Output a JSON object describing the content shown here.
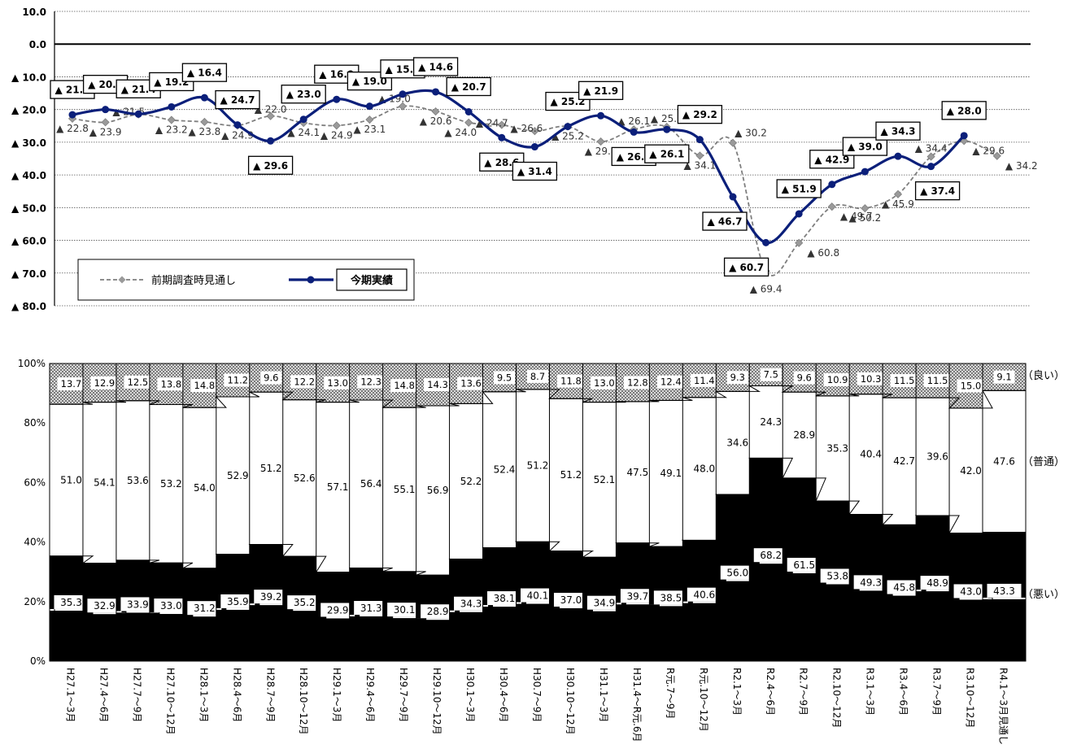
{
  "chart_data": [
    {
      "type": "line",
      "y_axis": {
        "range": [
          10,
          -80
        ],
        "ticks": [
          "10.0",
          "0.0",
          "▲ 10.0",
          "▲ 20.0",
          "▲ 30.0",
          "▲ 40.0",
          "▲ 50.0",
          "▲ 60.0",
          "▲ 70.0",
          "▲ 80.0"
        ],
        "tick_values": [
          10,
          0,
          -10,
          -20,
          -30,
          -40,
          -50,
          -60,
          -70,
          -80
        ]
      },
      "grid": true,
      "legend_position": "bottom-left",
      "series": [
        {
          "name": "前期調査時見通し",
          "style": "dashed-gray-diamond",
          "color": "#7f7f7f",
          "values": [
            -22.8,
            -23.9,
            -21.5,
            -23.2,
            -23.8,
            -24.9,
            -22.0,
            -24.1,
            -24.9,
            -23.1,
            -19.0,
            -20.6,
            -24.0,
            -24.7,
            -26.6,
            -25.2,
            -29.8,
            -26.1,
            -25.3,
            -34.1,
            -30.2,
            -69.4,
            -60.8,
            -49.7,
            -50.2,
            -45.9,
            -34.4,
            -29.6,
            -34.2
          ],
          "labels": [
            "▲ 22.8",
            "▲ 23.9",
            "▲ 21.5",
            "▲ 23.2",
            "▲ 23.8",
            "▲ 24.9",
            "▲ 22.0",
            "▲ 24.1",
            "▲ 24.9",
            "▲ 23.1",
            "▲ 19.0",
            "▲ 20.6",
            "▲ 24.0",
            "▲ 24.7",
            "▲ 26.6",
            "▲ 25.2",
            "▲ 29.8",
            "▲ 26.1",
            "▲ 25.3",
            "▲ 34.1",
            "▲ 30.2",
            "▲ 69.4",
            "▲ 60.8",
            "▲ 49.7",
            "▲ 50.2",
            "▲ 45.9",
            "▲ 34.4",
            "▲ 29.6",
            "▲ 34.2"
          ]
        },
        {
          "name": "今期実績",
          "style": "solid-navy-circle",
          "color": "#0b1f7a",
          "values": [
            -21.6,
            -20.0,
            -21.4,
            -19.2,
            -16.4,
            -24.7,
            -29.6,
            -23.0,
            -16.9,
            -19.0,
            -15.3,
            -14.6,
            -20.7,
            -28.6,
            -31.4,
            -25.2,
            -21.9,
            -26.9,
            -26.1,
            -29.2,
            -46.7,
            -60.7,
            -51.9,
            -42.9,
            -39.0,
            -34.3,
            -37.4,
            -28.0
          ],
          "labels": [
            "▲ 21.6",
            "▲ 20.0",
            "▲ 21.4",
            "▲ 19.2",
            "▲ 16.4",
            "▲ 24.7",
            "▲ 29.6",
            "▲ 23.0",
            "▲ 16.9",
            "▲ 19.0",
            "▲ 15.3",
            "▲ 14.6",
            "▲ 20.7",
            "▲ 28.6",
            "▲ 31.4",
            "▲ 25.2",
            "▲ 21.9",
            "▲ 26.9",
            "▲ 26.1",
            "▲ 29.2",
            "▲ 46.7",
            "▲ 60.7",
            "▲ 51.9",
            "▲ 42.9",
            "▲ 39.0",
            "▲ 34.3",
            "▲ 37.4",
            "▲ 28.0"
          ]
        }
      ]
    },
    {
      "type": "bar",
      "stacked": true,
      "y_axis": {
        "range": [
          0,
          100
        ],
        "ticks": [
          "0%",
          "20%",
          "40%",
          "60%",
          "80%",
          "100%"
        ]
      },
      "categories": [
        "H27.1～3月",
        "H27.4～6月",
        "H27.7～9月",
        "H27.10～12月",
        "H28.1～3月",
        "H28.4～6月",
        "H28.7～9月",
        "H28.10～12月",
        "H29.1～3月",
        "H29.4～6月",
        "H29.7～9月",
        "H29.10～12月",
        "H30.1～3月",
        "H30.4～6月",
        "H30.7～9月",
        "H30.10～12月",
        "H31.1～3月",
        "H31.4～R元.6月",
        "R元.7～9月",
        "R元.10～12月",
        "R2.1～3月",
        "R2.4～6月",
        "R2.7～9月",
        "R2.10～12月",
        "R3.1～3月",
        "R3.4～6月",
        "R3.7～9月",
        "R3.10～12月",
        "R4.1～3月見通し"
      ],
      "series": [
        {
          "name": "（悪い）",
          "color": "#000000",
          "values": [
            35.3,
            32.9,
            33.9,
            33.0,
            31.2,
            35.9,
            39.2,
            35.2,
            29.9,
            31.3,
            30.1,
            28.9,
            34.3,
            38.1,
            40.1,
            37.0,
            34.9,
            39.7,
            38.5,
            40.6,
            56.0,
            68.2,
            61.5,
            53.8,
            49.3,
            45.8,
            48.9,
            43.0,
            43.3
          ],
          "labels": [
            "35.3",
            "32.9",
            "33.9",
            "33.0",
            "31.2",
            "35.9",
            "39.2",
            "35.2",
            "29.9",
            "31.3",
            "30.1",
            "28.9",
            "34.3",
            "38.1",
            "40.1",
            "37.0",
            "34.9",
            "39.7",
            "38.5",
            "40.6",
            "56.0",
            "68.2",
            "61.5",
            "53.8",
            "49.3",
            "45.8",
            "48.9",
            "43.0",
            "43.3"
          ]
        },
        {
          "name": "（普通）",
          "color": "#ffffff",
          "values": [
            51.0,
            54.1,
            53.6,
            53.2,
            54.0,
            52.9,
            51.2,
            52.6,
            57.1,
            56.4,
            55.1,
            56.9,
            52.2,
            52.4,
            51.2,
            51.2,
            52.1,
            47.5,
            49.1,
            48.0,
            34.6,
            24.3,
            28.9,
            35.3,
            40.4,
            42.7,
            39.6,
            42.0,
            47.6
          ],
          "labels": [
            "51.0",
            "54.1",
            "53.6",
            "53.2",
            "54.0",
            "52.9",
            "51.2",
            "52.6",
            "57.1",
            "56.4",
            "55.1",
            "56.9",
            "52.2",
            "52.4",
            "51.2",
            "51.2",
            "52.1",
            "47.5",
            "49.1",
            "48.0",
            "34.6",
            "24.3",
            "28.9",
            "35.3",
            "40.4",
            "42.7",
            "39.6",
            "42.0",
            "47.6"
          ]
        },
        {
          "name": "（良い）",
          "color": "#bdbdbd",
          "values": [
            13.7,
            12.9,
            12.5,
            13.8,
            14.8,
            11.2,
            9.6,
            12.2,
            13.0,
            12.3,
            14.8,
            14.3,
            13.6,
            9.5,
            8.7,
            11.8,
            13.0,
            12.8,
            12.4,
            11.4,
            9.3,
            7.5,
            9.6,
            10.9,
            10.3,
            11.5,
            11.5,
            15.0,
            9.1
          ],
          "labels": [
            "13.7",
            "12.9",
            "12.5",
            "13.8",
            "14.8",
            "11.2",
            "9.6",
            "12.2",
            "13.0",
            "12.3",
            "14.8",
            "14.3",
            "13.6",
            "9.5",
            "8.7",
            "11.8",
            "13.0",
            "12.8",
            "12.4",
            "11.4",
            "9.3",
            "7.5",
            "9.6",
            "10.9",
            "10.3",
            "11.5",
            "11.5",
            "15.0",
            "9.1"
          ]
        }
      ]
    }
  ]
}
